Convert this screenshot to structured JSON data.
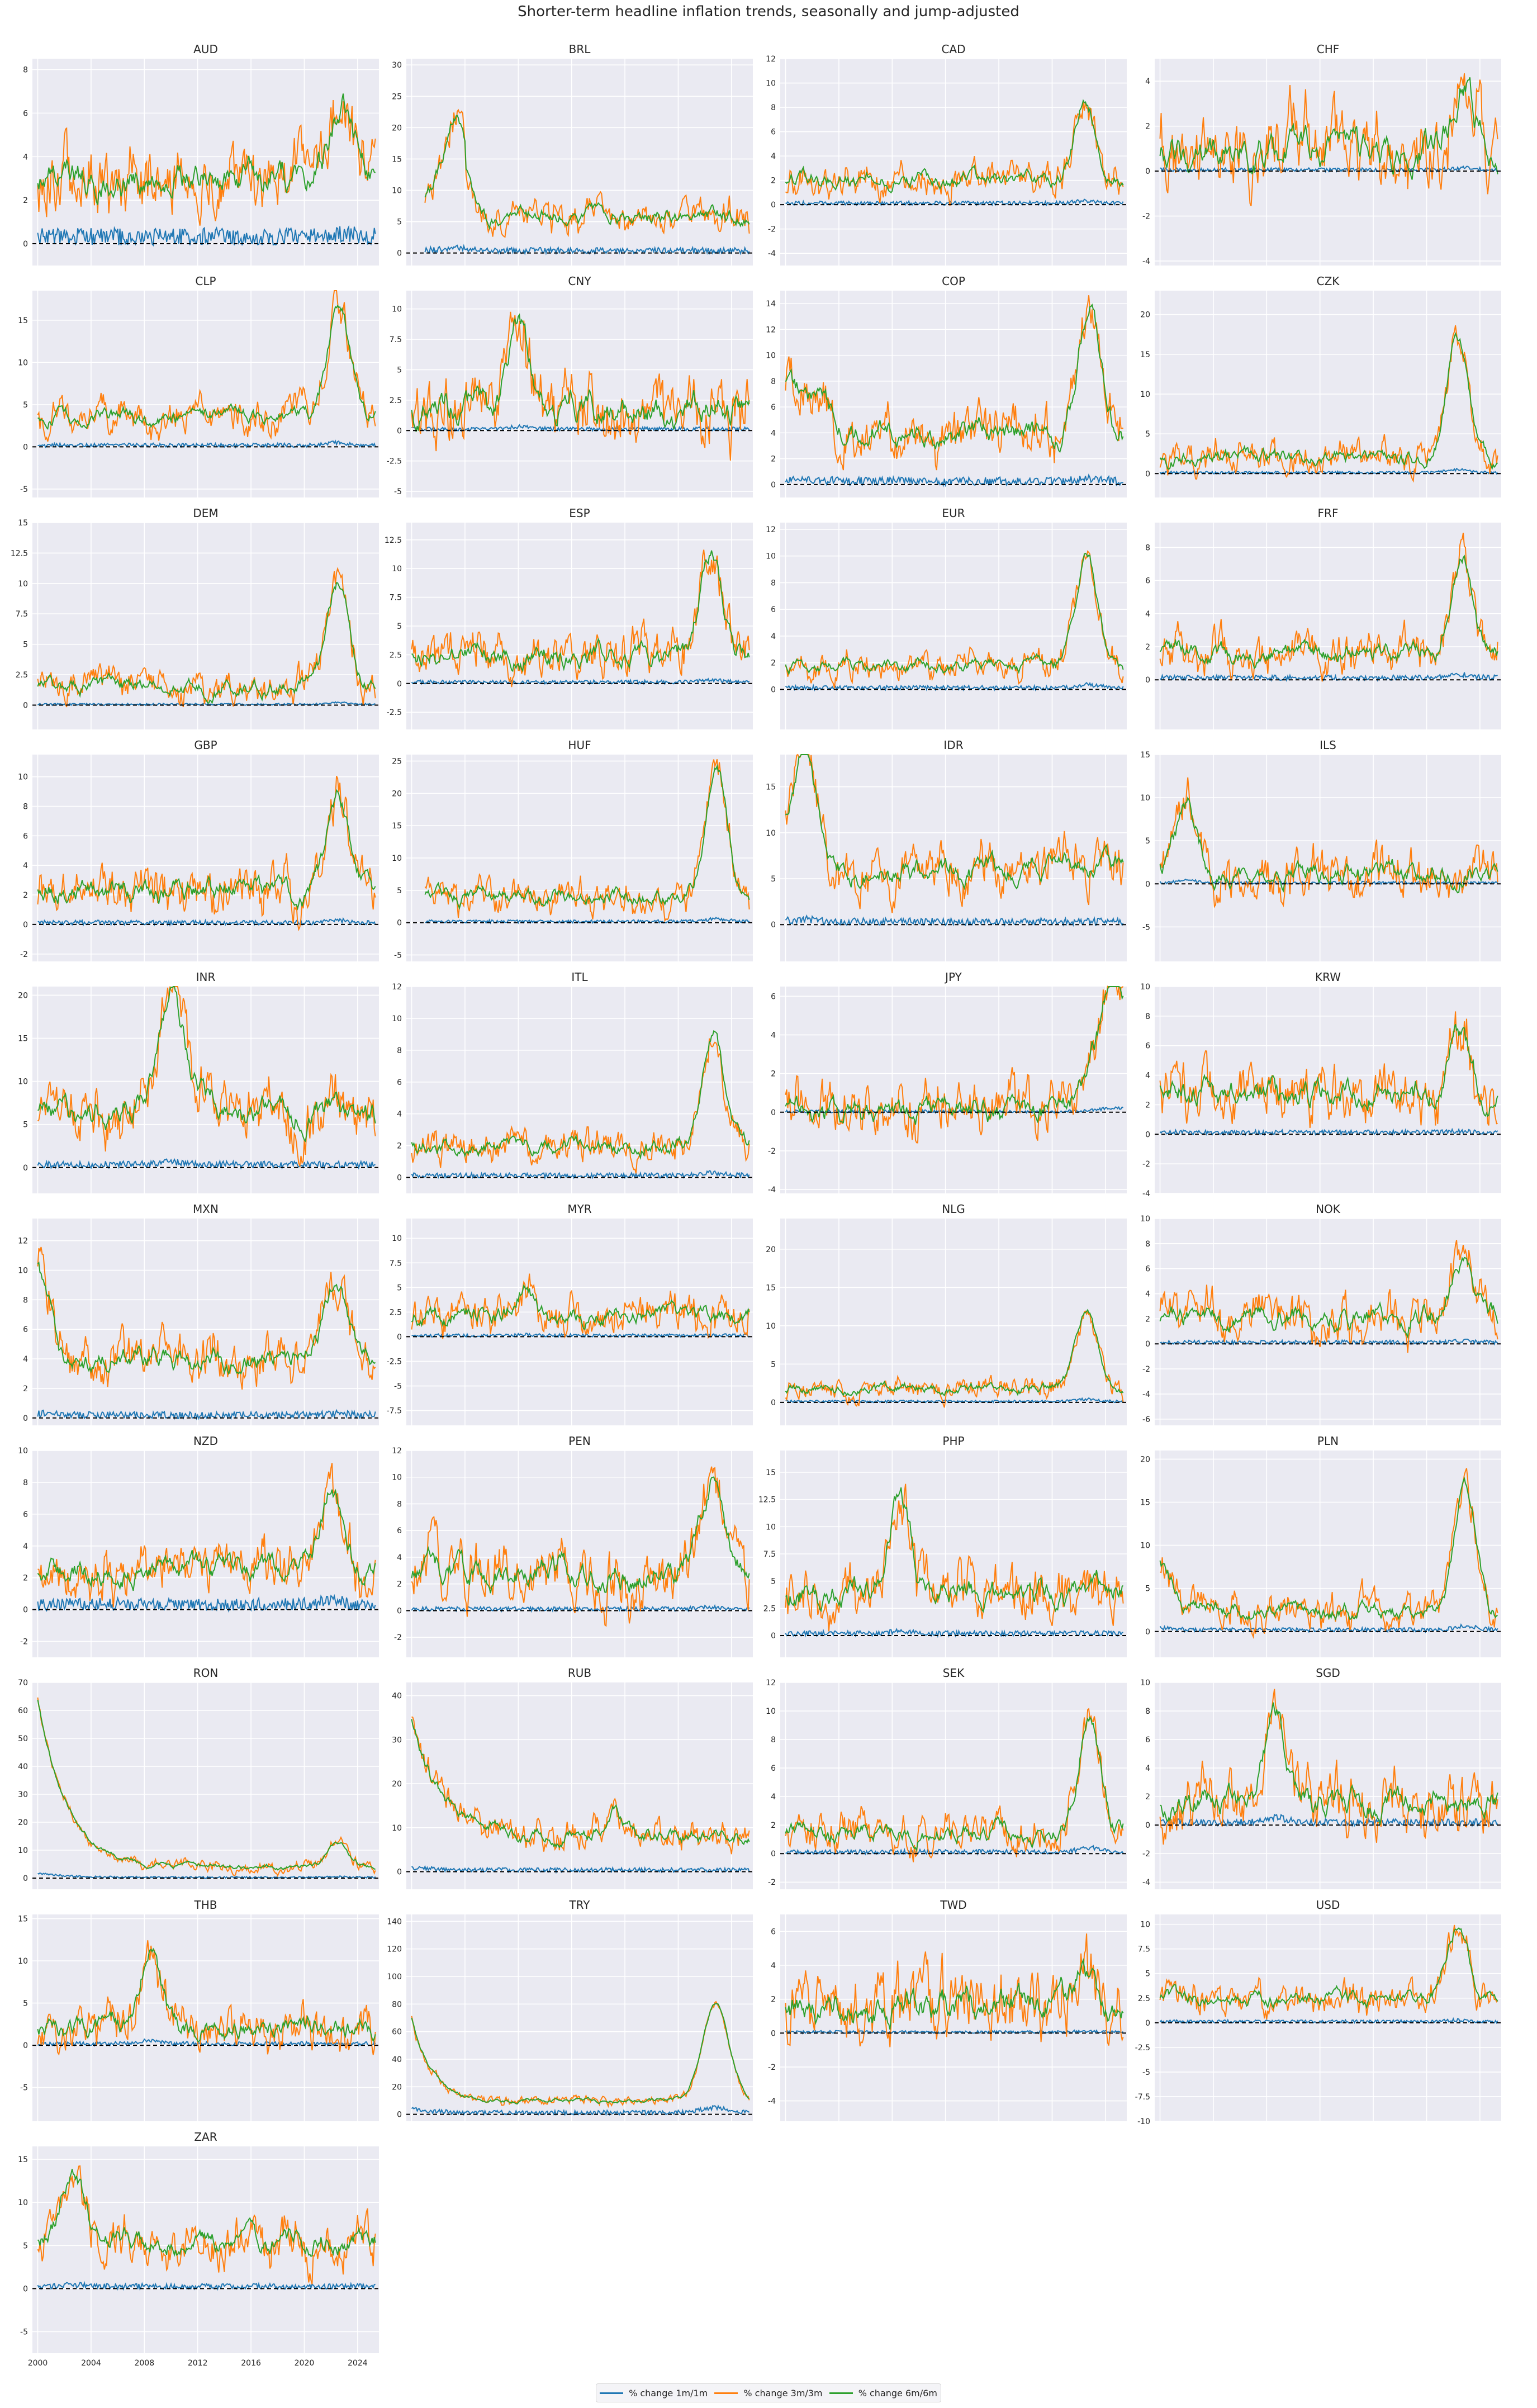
{
  "title": "Shorter-term headline inflation trends, seasonally and jump-adjusted",
  "legend": [
    {
      "label": "% change 1m/1m",
      "color": "#1f77b4"
    },
    {
      "label": "% change 3m/3m",
      "color": "#ff7f0e"
    },
    {
      "label": "% change 6m/6m",
      "color": "#2ca02c"
    }
  ],
  "chart_data": {
    "type": "line",
    "x_ticks": [
      "2000",
      "2004",
      "2008",
      "2012",
      "2016",
      "2020",
      "2024"
    ],
    "xlim": [
      1999.6,
      2025.6
    ],
    "reference_line": 0,
    "grid": true,
    "legend_position": "bottom-center",
    "panels": [
      {
        "name": "AUD",
        "yticks": [
          0,
          2,
          4,
          6,
          8
        ],
        "ylim": [
          -1,
          8.5
        ],
        "shape": "low",
        "base": 3.0,
        "amp": 1.2,
        "peak": [
          2022.8,
          6.3
        ],
        "m1": 0.5,
        "start": 2000
      },
      {
        "name": "BRL",
        "yticks": [
          0,
          5,
          10,
          15,
          20,
          25,
          30
        ],
        "ylim": [
          -2,
          31
        ],
        "shape": "brl",
        "base": 6.0,
        "amp": 2.0,
        "peak": [
          2003.3,
          19
        ],
        "m1": 0.6,
        "start": 2001
      },
      {
        "name": "CAD",
        "yticks": [
          -4,
          -2,
          0,
          2,
          4,
          6,
          8,
          10,
          12
        ],
        "ylim": [
          -5,
          12
        ],
        "shape": "low",
        "base": 2.0,
        "amp": 1.0,
        "peak": [
          2022.5,
          8.5
        ],
        "m1": 0.2,
        "start": 2000
      },
      {
        "name": "CHF",
        "yticks": [
          -4,
          -2,
          0,
          2,
          4
        ],
        "ylim": [
          -4.2,
          5
        ],
        "shape": "low",
        "base": 0.8,
        "amp": 1.2,
        "peak": [
          2022.7,
          4.0
        ],
        "m1": 0.1,
        "start": 2000
      },
      {
        "name": "CLP",
        "yticks": [
          -5,
          0,
          5,
          10,
          15
        ],
        "ylim": [
          -6,
          18.5
        ],
        "shape": "low",
        "base": 3.5,
        "amp": 1.5,
        "peak": [
          2022.6,
          17
        ],
        "m1": 0.3,
        "start": 2000
      },
      {
        "name": "CNY",
        "yticks": [
          -5.0,
          -2.5,
          0.0,
          2.5,
          5.0,
          7.5,
          10.0
        ],
        "ylim": [
          -5.5,
          11.5
        ],
        "shape": "low",
        "base": 1.8,
        "amp": 2.0,
        "peak": [
          2008.0,
          8.5
        ],
        "m1": 0.2,
        "start": 2000
      },
      {
        "name": "COP",
        "yticks": [
          0,
          2,
          4,
          6,
          8,
          10,
          12,
          14
        ],
        "ylim": [
          -1,
          15
        ],
        "shape": "cop",
        "base": 4.0,
        "amp": 1.5,
        "peak": [
          2022.8,
          14
        ],
        "m1": 0.4,
        "start": 2000
      },
      {
        "name": "CZK",
        "yticks": [
          0,
          5,
          10,
          15,
          20
        ],
        "ylim": [
          -3,
          23
        ],
        "shape": "low",
        "base": 2.0,
        "amp": 1.5,
        "peak": [
          2022.3,
          17
        ],
        "m1": 0.2,
        "start": 2000
      },
      {
        "name": "DEM",
        "yticks": [
          0.0,
          2.5,
          5.0,
          7.5,
          10.0,
          12.5,
          15.0
        ],
        "ylim": [
          -2,
          15
        ],
        "shape": "low",
        "base": 1.5,
        "amp": 1.0,
        "peak": [
          2022.5,
          10
        ],
        "m1": 0.1,
        "start": 2000
      },
      {
        "name": "ESP",
        "yticks": [
          -2.5,
          0.0,
          2.5,
          5.0,
          7.5,
          10.0,
          12.5
        ],
        "ylim": [
          -4,
          14
        ],
        "shape": "low",
        "base": 2.5,
        "amp": 1.5,
        "peak": [
          2022.4,
          11.5
        ],
        "m1": 0.2,
        "start": 2000
      },
      {
        "name": "EUR",
        "yticks": [
          0,
          2,
          4,
          6,
          8,
          10,
          12
        ],
        "ylim": [
          -3,
          12.5
        ],
        "shape": "low",
        "base": 1.8,
        "amp": 0.8,
        "peak": [
          2022.6,
          10
        ],
        "m1": 0.2,
        "start": 2000
      },
      {
        "name": "FRF",
        "yticks": [
          0,
          2,
          4,
          6,
          8
        ],
        "ylim": [
          -3,
          9.5
        ],
        "shape": "low",
        "base": 1.6,
        "amp": 0.9,
        "peak": [
          2022.6,
          7.5
        ],
        "m1": 0.2,
        "start": 2000
      },
      {
        "name": "GBP",
        "yticks": [
          -2,
          0,
          2,
          4,
          6,
          8,
          10
        ],
        "ylim": [
          -2.5,
          11.5
        ],
        "shape": "low",
        "base": 2.2,
        "amp": 1.2,
        "peak": [
          2022.5,
          9
        ],
        "m1": 0.2,
        "start": 2000
      },
      {
        "name": "HUF",
        "yticks": [
          -5,
          0,
          5,
          10,
          15,
          20,
          25
        ],
        "ylim": [
          -6,
          26
        ],
        "shape": "low",
        "base": 4.0,
        "amp": 2.0,
        "peak": [
          2022.9,
          24
        ],
        "m1": 0.3,
        "start": 2001
      },
      {
        "name": "IDR",
        "yticks": [
          0,
          5,
          10,
          15
        ],
        "ylim": [
          -4,
          18.5
        ],
        "shape": "cop",
        "base": 6.0,
        "amp": 2.0,
        "peak": [
          2001.5,
          15
        ],
        "m1": 0.5,
        "start": 2000
      },
      {
        "name": "ILS",
        "yticks": [
          -5,
          0,
          5,
          10,
          15
        ],
        "ylim": [
          -9,
          15
        ],
        "shape": "low",
        "base": 1.5,
        "amp": 2.0,
        "peak": [
          2002.0,
          9
        ],
        "m1": 0.2,
        "start": 2000
      },
      {
        "name": "INR",
        "yticks": [
          0,
          5,
          10,
          15,
          20
        ],
        "ylim": [
          -3,
          21
        ],
        "shape": "inr",
        "base": 6.0,
        "amp": 2.5,
        "peak": [
          2010.0,
          16
        ],
        "m1": 0.5,
        "start": 2000
      },
      {
        "name": "ITL",
        "yticks": [
          0,
          2,
          4,
          6,
          8,
          10,
          12
        ],
        "ylim": [
          -1,
          12
        ],
        "shape": "low",
        "base": 2.0,
        "amp": 0.8,
        "peak": [
          2022.6,
          9
        ],
        "m1": 0.2,
        "start": 2000
      },
      {
        "name": "JPY",
        "yticks": [
          -4,
          -2,
          0,
          2,
          4,
          6
        ],
        "ylim": [
          -4.2,
          6.5
        ],
        "shape": "jpy",
        "base": 0.0,
        "amp": 1.0,
        "peak": [
          2024.5,
          4
        ],
        "m1": 0.1,
        "start": 2000
      },
      {
        "name": "KRW",
        "yticks": [
          -4,
          -2,
          0,
          2,
          4,
          6,
          8,
          10
        ],
        "ylim": [
          -4,
          10
        ],
        "shape": "low",
        "base": 2.8,
        "amp": 1.5,
        "peak": [
          2022.4,
          6.5
        ],
        "m1": 0.2,
        "start": 2000
      },
      {
        "name": "MXN",
        "yticks": [
          0,
          2,
          4,
          6,
          8,
          10,
          12
        ],
        "ylim": [
          -0.5,
          13.5
        ],
        "shape": "mxn",
        "base": 4.0,
        "amp": 1.2,
        "peak": [
          2022.3,
          9
        ],
        "m1": 0.3,
        "start": 2000
      },
      {
        "name": "MYR",
        "yticks": [
          -7.5,
          -5.0,
          -2.5,
          0.0,
          2.5,
          5.0,
          7.5,
          10.0
        ],
        "ylim": [
          -9,
          12
        ],
        "shape": "low",
        "base": 2.0,
        "amp": 1.5,
        "peak": [
          2008.4,
          5.0
        ],
        "m1": 0.2,
        "start": 2000
      },
      {
        "name": "NLG",
        "yticks": [
          0,
          5,
          10,
          15,
          20
        ],
        "ylim": [
          -3,
          24
        ],
        "shape": "low",
        "base": 1.8,
        "amp": 1.0,
        "peak": [
          2022.6,
          12
        ],
        "m1": 0.2,
        "start": 2000
      },
      {
        "name": "NOK",
        "yticks": [
          -6,
          -4,
          -2,
          0,
          2,
          4,
          6,
          8,
          10
        ],
        "ylim": [
          -6.5,
          10
        ],
        "shape": "low",
        "base": 2.2,
        "amp": 1.4,
        "peak": [
          2022.7,
          7
        ],
        "m1": 0.2,
        "start": 2000
      },
      {
        "name": "NZD",
        "yticks": [
          -2,
          0,
          2,
          4,
          6,
          8,
          10
        ],
        "ylim": [
          -3,
          10
        ],
        "shape": "nzd",
        "base": 2.6,
        "amp": 1.2,
        "peak": [
          2022.0,
          7.5
        ],
        "m1": 0.5,
        "start": 2000
      },
      {
        "name": "PEN",
        "yticks": [
          -2,
          0,
          2,
          4,
          6,
          8,
          10,
          12
        ],
        "ylim": [
          -3.5,
          12
        ],
        "shape": "low",
        "base": 2.8,
        "amp": 1.6,
        "peak": [
          2022.5,
          9.5
        ],
        "m1": 0.2,
        "start": 2000
      },
      {
        "name": "PHP",
        "yticks": [
          0.0,
          2.5,
          5.0,
          7.5,
          10.0,
          12.5,
          15.0
        ],
        "ylim": [
          -2,
          17
        ],
        "shape": "low",
        "base": 4.0,
        "amp": 2.0,
        "peak": [
          2008.5,
          13
        ],
        "m1": 0.3,
        "start": 2000
      },
      {
        "name": "PLN",
        "yticks": [
          0,
          5,
          10,
          15,
          20
        ],
        "ylim": [
          -3,
          21
        ],
        "shape": "mxn",
        "base": 2.5,
        "amp": 1.5,
        "peak": [
          2022.9,
          17
        ],
        "m1": 0.3,
        "start": 2000
      },
      {
        "name": "RON",
        "yticks": [
          0,
          10,
          20,
          30,
          40,
          50,
          60,
          70
        ],
        "ylim": [
          -4,
          70
        ],
        "shape": "ron",
        "base": 4.0,
        "amp": 1.5,
        "peak": [
          2022.6,
          12
        ],
        "m1": 0.4,
        "start": 2000
      },
      {
        "name": "RUB",
        "yticks": [
          0,
          10,
          20,
          30,
          40
        ],
        "ylim": [
          -4,
          43
        ],
        "shape": "ron",
        "base": 8.0,
        "amp": 2.5,
        "peak": [
          2015.2,
          14
        ],
        "m1": 0.6,
        "start": 2000
      },
      {
        "name": "SEK",
        "yticks": [
          -2,
          0,
          2,
          4,
          6,
          8,
          10,
          12
        ],
        "ylim": [
          -2.5,
          12
        ],
        "shape": "low",
        "base": 1.5,
        "amp": 1.0,
        "peak": [
          2022.8,
          10
        ],
        "m1": 0.2,
        "start": 2000
      },
      {
        "name": "SGD",
        "yticks": [
          -4,
          -2,
          0,
          2,
          4,
          6,
          8,
          10
        ],
        "ylim": [
          -4.5,
          10
        ],
        "shape": "low",
        "base": 1.5,
        "amp": 1.5,
        "peak": [
          2008.7,
          8
        ],
        "m1": 0.3,
        "start": 2000
      },
      {
        "name": "THB",
        "yticks": [
          -5,
          0,
          5,
          10,
          15
        ],
        "ylim": [
          -9,
          15.5
        ],
        "shape": "low",
        "base": 2.0,
        "amp": 2.0,
        "peak": [
          2008.4,
          11
        ],
        "m1": 0.3,
        "start": 2000
      },
      {
        "name": "TRY",
        "yticks": [
          0,
          20,
          40,
          60,
          80,
          100,
          120,
          140
        ],
        "ylim": [
          -5,
          145
        ],
        "shape": "try",
        "base": 10.0,
        "amp": 2.5,
        "peak": [
          2022.8,
          80
        ],
        "m1": 2.0,
        "start": 2000
      },
      {
        "name": "TWD",
        "yticks": [
          -4,
          -2,
          0,
          2,
          4,
          6
        ],
        "ylim": [
          -5.2,
          7
        ],
        "shape": "low",
        "base": 1.5,
        "amp": 1.5,
        "peak": [
          2022.4,
          3.5
        ],
        "m1": 0.1,
        "start": 2000
      },
      {
        "name": "USD",
        "yticks": [
          -10.0,
          -7.5,
          -5.0,
          -2.5,
          0.0,
          2.5,
          5.0,
          7.5,
          10.0
        ],
        "ylim": [
          -10,
          11
        ],
        "shape": "low",
        "base": 2.5,
        "amp": 1.2,
        "peak": [
          2022.3,
          9.5
        ],
        "m1": 0.2,
        "start": 2000
      },
      {
        "name": "ZAR",
        "yticks": [
          -5,
          0,
          5,
          10,
          15
        ],
        "ylim": [
          -7.5,
          16.5
        ],
        "shape": "low",
        "base": 5.5,
        "amp": 2.0,
        "peak": [
          2002.7,
          14
        ],
        "m1": 0.4,
        "start": 2000
      }
    ]
  }
}
